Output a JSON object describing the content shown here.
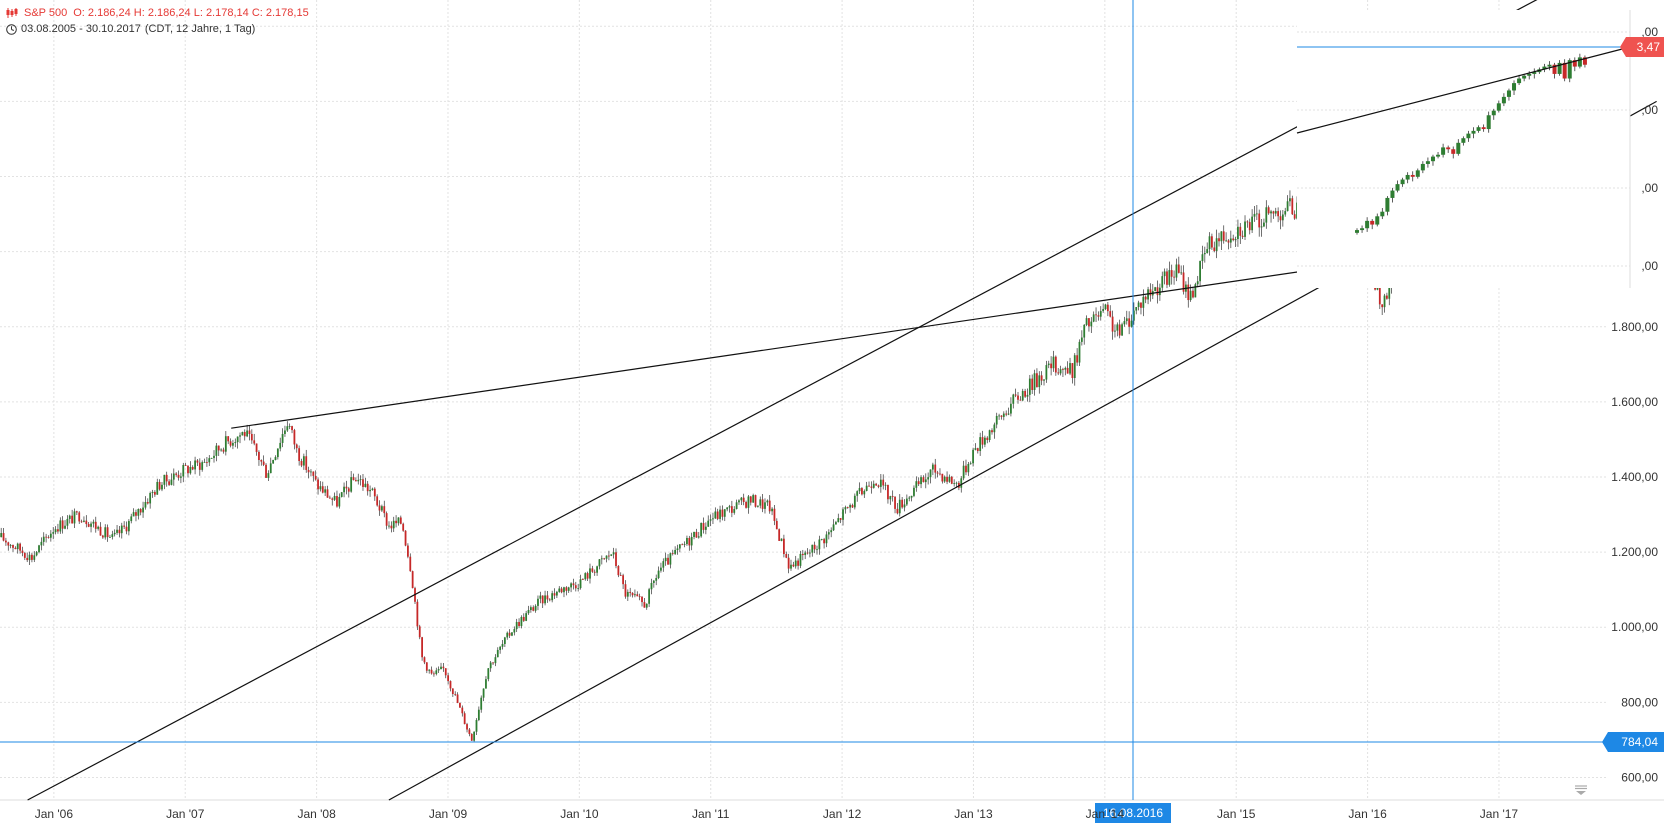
{
  "header": {
    "symbol": "S&P 500",
    "ohlc": "O: 2.186,24  H: 2.186,24  L: 2.178,14  C: 2.178,15",
    "range": "03.08.2005 - 30.10.2017",
    "interval": "(CDT, 12 Jahre, 1 Tag)"
  },
  "colors": {
    "up": "#2e7d32",
    "down": "#c62828",
    "wick": "#333333",
    "crosshair": "#1e88e5",
    "grid": "#e2e2e2",
    "price_tag_red": "#ef5350",
    "date_tag": "#1e88e5"
  },
  "crosshair": {
    "date_label": "16.08.2016",
    "price_label": "784,04",
    "last_price_label": "3,47"
  },
  "chart_data": [
    {
      "type": "line",
      "title": "S&P 500",
      "xlabel": "",
      "ylabel": "",
      "x_tick_labels": [
        "Jan '06",
        "Jan '07",
        "Jan '08",
        "Jan '09",
        "Jan '10",
        "Jan '11",
        "Jan '12",
        "Jan '13",
        "Jan '14",
        "Jan '15",
        "Jan '16",
        "Jan '17"
      ],
      "y_tick_labels": [
        "600,00",
        "800,00",
        "1.000,00",
        "1.200,00",
        "1.400,00",
        "1.600,00",
        "1.800,00"
      ],
      "xlim": [
        2005.59,
        2017.83
      ],
      "ylim": [
        540,
        2670
      ],
      "grid": true,
      "series": [
        {
          "x": [
            2005.59,
            2005.75,
            2005.83,
            2006.0,
            2006.2,
            2006.45,
            2006.55,
            2006.8,
            2007.0,
            2007.15,
            2007.3,
            2007.45,
            2007.55,
            2007.62,
            2007.78,
            2007.85,
            2008.0,
            2008.15,
            2008.3,
            2008.42,
            2008.55,
            2008.65,
            2008.72,
            2008.8,
            2008.88,
            2008.97,
            2009.05,
            2009.18,
            2009.3,
            2009.5,
            2009.7,
            2009.85,
            2010.0,
            2010.25,
            2010.35,
            2010.5,
            2010.6,
            2010.8,
            2011.0,
            2011.3,
            2011.45,
            2011.6,
            2011.75,
            2011.9,
            2012.0,
            2012.25,
            2012.42,
            2012.7,
            2012.88,
            2013.0,
            2013.3,
            2013.45,
            2013.6,
            2013.75,
            2013.85,
            2014.0,
            2014.1,
            2014.3,
            2014.55,
            2014.65,
            2014.79,
            2015.0,
            2015.15,
            2015.4,
            2015.6,
            2015.65,
            2015.8,
            2015.95,
            2016.04,
            2016.12,
            2016.3,
            2016.45,
            2016.5,
            2016.55,
            2016.63,
            2016.75,
            2016.84,
            2016.92,
            2017.0,
            2017.2,
            2017.45,
            2017.6,
            2017.83
          ],
          "values": [
            1240,
            1205,
            1185,
            1265,
            1300,
            1235,
            1270,
            1380,
            1420,
            1440,
            1490,
            1520,
            1460,
            1410,
            1550,
            1470,
            1380,
            1330,
            1400,
            1360,
            1270,
            1280,
            1150,
            920,
            870,
            890,
            820,
            700,
            890,
            1000,
            1070,
            1100,
            1120,
            1200,
            1090,
            1060,
            1150,
            1220,
            1290,
            1340,
            1320,
            1160,
            1200,
            1250,
            1300,
            1400,
            1320,
            1420,
            1380,
            1470,
            1600,
            1650,
            1700,
            1680,
            1800,
            1840,
            1780,
            1880,
            1950,
            1880,
            2020,
            2060,
            2080,
            2120,
            2100,
            1900,
            2030,
            2050,
            1930,
            1850,
            2060,
            2090,
            2110,
            2180,
            2186,
            2150,
            2120,
            2160,
            2270,
            2380,
            2430,
            2470,
            2580
          ]
        }
      ]
    },
    {
      "type": "line",
      "title": "",
      "xlabel": "",
      "ylabel": "",
      "y_tick_labels": [
        ",00",
        ",00",
        ",00",
        ",00"
      ],
      "series": [
        {
          "values": [
            2180,
            2182,
            2190,
            2186,
            2195,
            2200,
            2215,
            2223,
            2230,
            2235,
            2240,
            2238,
            2245,
            2252,
            2255,
            2260,
            2262,
            2270,
            2268,
            2263,
            2275,
            2280,
            2285,
            2288,
            2292,
            2290,
            2305,
            2310,
            2318,
            2325,
            2332,
            2340,
            2345,
            2348,
            2350,
            2352,
            2355,
            2358,
            2360,
            2350,
            2362,
            2345,
            2365,
            2358,
            2368,
            2360
          ]
        }
      ]
    }
  ]
}
